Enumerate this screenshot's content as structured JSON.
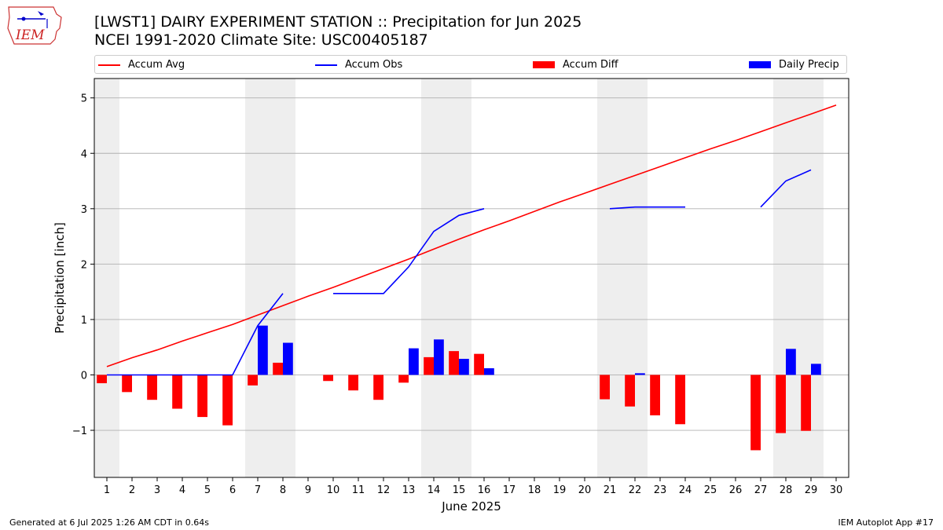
{
  "header": {
    "title": "[LWST1] DAIRY EXPERIMENT STATION :: Precipitation for Jun 2025",
    "subtitle": "NCEI 1991-2020 Climate Site: USC00405187",
    "logo_text": "IEM"
  },
  "footer": {
    "generated": "Generated at 6 Jul 2025 1:26 AM CDT in 0.64s",
    "app": "IEM Autoplot App #17"
  },
  "colors": {
    "avg": "#ff0000",
    "obs": "#0000ff",
    "diff": "#ff0000",
    "daily": "#0000ff",
    "weekend_shade": "#eeeeee",
    "grid": "#b0b0b0"
  },
  "chart_data": {
    "type": "bar",
    "xlabel": "June 2025",
    "ylabel": "Precipitation [inch]",
    "x": [
      1,
      2,
      3,
      4,
      5,
      6,
      7,
      8,
      9,
      10,
      11,
      12,
      13,
      14,
      15,
      16,
      17,
      18,
      19,
      20,
      21,
      22,
      23,
      24,
      25,
      26,
      27,
      28,
      29,
      30
    ],
    "xlim": [
      0.5,
      30.5
    ],
    "ylim": [
      -1.85,
      5.35
    ],
    "yticks": [
      -1,
      0,
      1,
      2,
      3,
      4,
      5
    ],
    "ytick_labels": [
      "−1",
      "0",
      "1",
      "2",
      "3",
      "4",
      "5"
    ],
    "grid": "horizontal",
    "legend_placement": "top, above plot",
    "shaded_days": [
      [
        1,
        1
      ],
      [
        7,
        8
      ],
      [
        14,
        15
      ],
      [
        21,
        22
      ],
      [
        28,
        29
      ]
    ],
    "series": [
      {
        "name": "Accum Avg",
        "kind": "line",
        "values": [
          0.15,
          0.31,
          0.45,
          0.61,
          0.76,
          0.91,
          1.08,
          1.25,
          1.42,
          1.58,
          1.75,
          1.92,
          2.09,
          2.27,
          2.45,
          2.62,
          2.78,
          2.95,
          3.12,
          3.28,
          3.44,
          3.6,
          3.76,
          3.92,
          4.08,
          4.23,
          4.39,
          4.55,
          4.71,
          4.87
        ]
      },
      {
        "name": "Accum Obs",
        "kind": "line",
        "values": [
          0,
          0,
          0,
          0,
          0,
          0,
          0.89,
          1.47,
          null,
          1.47,
          1.47,
          1.47,
          1.95,
          2.59,
          2.88,
          3.0,
          null,
          null,
          null,
          null,
          3.0,
          3.03,
          3.03,
          3.03,
          null,
          null,
          3.03,
          3.5,
          3.7,
          null
        ]
      },
      {
        "name": "Accum Diff",
        "kind": "bar",
        "values": [
          -0.15,
          -0.31,
          -0.45,
          -0.61,
          -0.76,
          -0.91,
          -0.19,
          0.22,
          null,
          -0.11,
          -0.28,
          -0.45,
          -0.14,
          0.32,
          0.43,
          0.38,
          null,
          null,
          null,
          null,
          -0.44,
          -0.57,
          -0.73,
          -0.89,
          null,
          null,
          -1.36,
          -1.05,
          -1.01,
          null
        ]
      },
      {
        "name": "Daily Precip",
        "kind": "bar",
        "values": [
          0,
          0,
          0,
          0,
          0,
          0,
          0.89,
          0.58,
          null,
          0,
          0,
          0,
          0.48,
          0.64,
          0.29,
          0.12,
          null,
          null,
          null,
          null,
          0,
          0.03,
          0,
          0,
          null,
          null,
          0,
          0.47,
          0.2,
          null
        ]
      }
    ]
  }
}
